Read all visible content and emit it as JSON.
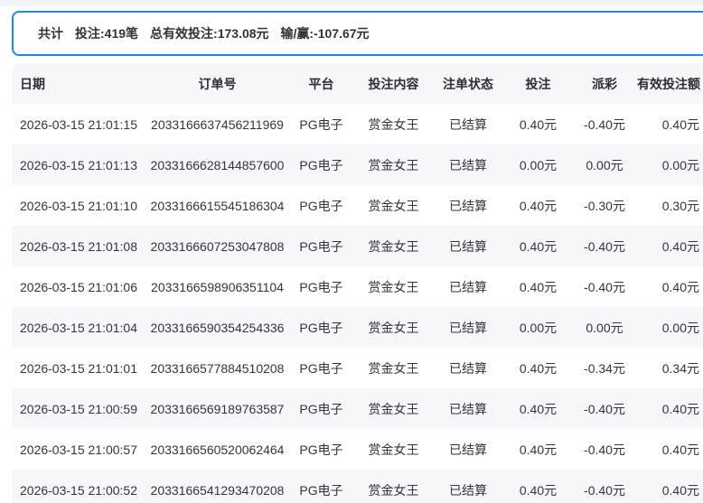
{
  "summary": {
    "total_label": "共计",
    "bets": "投注:419笔",
    "valid_bets": "总有效投注:173.08元",
    "win_loss": "输/赢:-107.67元"
  },
  "table": {
    "columns": [
      "日期",
      "订单号",
      "平台",
      "投注内容",
      "注单状态",
      "投注",
      "派彩",
      "有效投注额"
    ],
    "rows": [
      {
        "date": "2026-03-15 21:01:15",
        "order_no": "2033166637456211969",
        "platform": "PG电子",
        "content": "赏金女王",
        "status": "已结算",
        "bet": "0.40元",
        "payout": "-0.40元",
        "valid_amount": "0.40元"
      },
      {
        "date": "2026-03-15 21:01:13",
        "order_no": "2033166628144857600",
        "platform": "PG电子",
        "content": "赏金女王",
        "status": "已结算",
        "bet": "0.00元",
        "payout": "0.00元",
        "valid_amount": "0.00元"
      },
      {
        "date": "2026-03-15 21:01:10",
        "order_no": "2033166615545186304",
        "platform": "PG电子",
        "content": "赏金女王",
        "status": "已结算",
        "bet": "0.40元",
        "payout": "-0.30元",
        "valid_amount": "0.30元"
      },
      {
        "date": "2026-03-15 21:01:08",
        "order_no": "2033166607253047808",
        "platform": "PG电子",
        "content": "赏金女王",
        "status": "已结算",
        "bet": "0.40元",
        "payout": "-0.40元",
        "valid_amount": "0.40元"
      },
      {
        "date": "2026-03-15 21:01:06",
        "order_no": "2033166598906351104",
        "platform": "PG电子",
        "content": "赏金女王",
        "status": "已结算",
        "bet": "0.40元",
        "payout": "-0.40元",
        "valid_amount": "0.40元"
      },
      {
        "date": "2026-03-15 21:01:04",
        "order_no": "2033166590354254336",
        "platform": "PG电子",
        "content": "赏金女王",
        "status": "已结算",
        "bet": "0.00元",
        "payout": "0.00元",
        "valid_amount": "0.00元"
      },
      {
        "date": "2026-03-15 21:01:01",
        "order_no": "2033166577884510208",
        "platform": "PG电子",
        "content": "赏金女王",
        "status": "已结算",
        "bet": "0.40元",
        "payout": "-0.34元",
        "valid_amount": "0.34元"
      },
      {
        "date": "2026-03-15 21:00:59",
        "order_no": "2033166569189763587",
        "platform": "PG电子",
        "content": "赏金女王",
        "status": "已结算",
        "bet": "0.40元",
        "payout": "-0.40元",
        "valid_amount": "0.40元"
      },
      {
        "date": "2026-03-15 21:00:57",
        "order_no": "2033166560520062464",
        "platform": "PG电子",
        "content": "赏金女王",
        "status": "已结算",
        "bet": "0.40元",
        "payout": "-0.40元",
        "valid_amount": "0.40元"
      },
      {
        "date": "2026-03-15 21:00:52",
        "order_no": "2033166541293470208",
        "platform": "PG电子",
        "content": "赏金女王",
        "status": "已结算",
        "bet": "0.40元",
        "payout": "-0.40元",
        "valid_amount": "0.40元"
      }
    ]
  },
  "colors": {
    "accent": "#1e87e8",
    "stripe": "#f6f7fb"
  }
}
